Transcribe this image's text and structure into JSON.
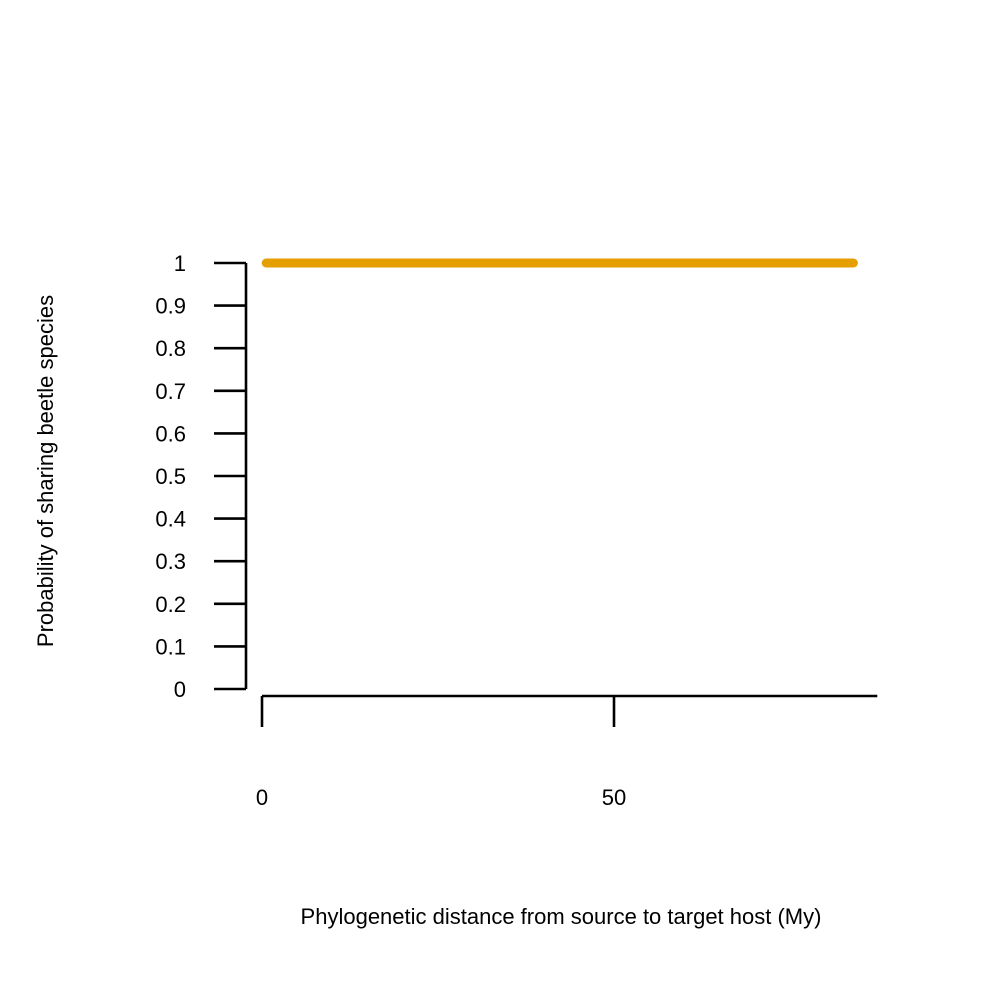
{
  "chart_data": {
    "type": "line",
    "title": "",
    "xlabel": "Phylogenetic distance from source to target host (My)",
    "ylabel": "Probability of sharing beetle species",
    "xlim": [
      0,
      87.4
    ],
    "ylim": [
      0,
      1
    ],
    "x_ticks": [
      0,
      50
    ],
    "x_tick_labels": [
      "0",
      "50"
    ],
    "y_ticks": [
      0,
      0.1,
      0.2,
      0.3,
      0.4,
      0.5,
      0.6,
      0.7,
      0.8,
      0.9,
      1
    ],
    "y_tick_labels": [
      "0",
      "0.1",
      "0.2",
      "0.3",
      "0.4",
      "0.5",
      "0.6",
      "0.7",
      "0.8",
      "0.9",
      "1"
    ],
    "grid": false,
    "legend": "none",
    "series": [
      {
        "color": "#E69F00",
        "x": [
          0.6,
          84.0
        ],
        "y": [
          1,
          1
        ]
      }
    ]
  }
}
